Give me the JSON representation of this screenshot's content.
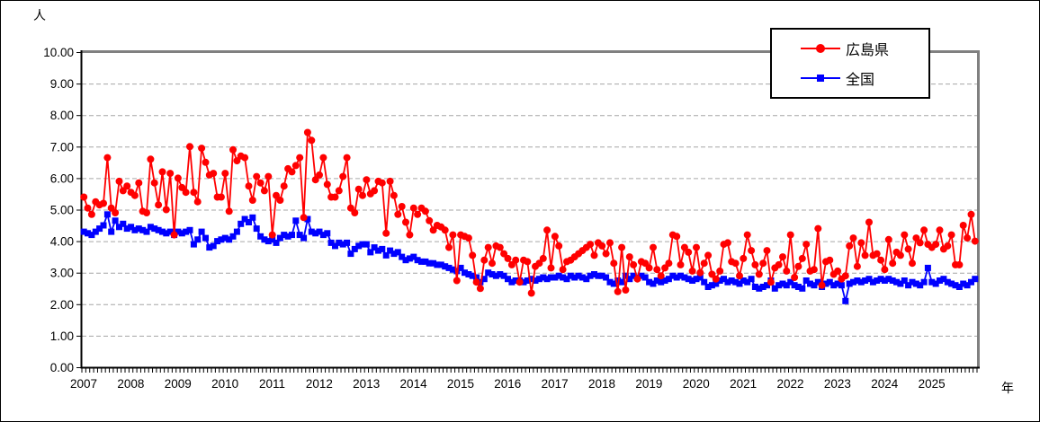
{
  "figure": {
    "unit_label": "人",
    "x_axis_label": "年"
  },
  "legend": {
    "items": [
      {
        "label": "広島県",
        "color": "#ff0000",
        "marker": "circle"
      },
      {
        "label": "全国",
        "color": "#0000ff",
        "marker": "square"
      }
    ]
  },
  "chart_data": {
    "type": "line",
    "title": "",
    "ylabel": "人",
    "xlabel": "年",
    "ylim": [
      0,
      10
    ],
    "y_tick_step": 1,
    "y_tick_labels": [
      "0.00",
      "1.00",
      "2.00",
      "3.00",
      "4.00",
      "5.00",
      "6.00",
      "7.00",
      "8.00",
      "9.00",
      "10.00"
    ],
    "grid": "horizontal-dashed",
    "legend_position": "top-right-inside",
    "x_frequency": "monthly",
    "years": [
      "2007",
      "2008",
      "2009",
      "2010",
      "2011",
      "2012",
      "2013",
      "2014",
      "2015",
      "2016",
      "2017",
      "2018",
      "2019",
      "2020",
      "2021",
      "2022",
      "2023",
      "2024",
      "2025"
    ],
    "points_per_year": 12,
    "series": [
      {
        "name": "広島県",
        "color": "#ff0000",
        "marker": "circle",
        "values": [
          5.4,
          5.05,
          4.85,
          5.25,
          5.15,
          5.2,
          6.65,
          5.05,
          4.9,
          5.9,
          5.6,
          5.75,
          5.55,
          5.45,
          5.85,
          4.95,
          4.9,
          6.6,
          5.85,
          5.15,
          6.2,
          5.0,
          6.15,
          4.2,
          6.0,
          5.7,
          5.55,
          7.0,
          5.55,
          5.25,
          6.95,
          6.5,
          6.1,
          6.15,
          5.4,
          5.4,
          6.15,
          4.95,
          6.9,
          6.55,
          6.7,
          6.65,
          5.75,
          5.3,
          6.05,
          5.85,
          5.6,
          6.05,
          4.2,
          5.45,
          5.3,
          5.75,
          6.3,
          6.2,
          6.4,
          6.65,
          4.75,
          7.45,
          7.2,
          5.95,
          6.1,
          6.65,
          5.8,
          5.4,
          5.4,
          5.6,
          6.05,
          6.65,
          5.05,
          4.9,
          5.65,
          5.45,
          5.95,
          5.5,
          5.6,
          5.9,
          5.85,
          4.25,
          5.9,
          5.45,
          4.85,
          5.1,
          4.6,
          4.2,
          5.05,
          4.85,
          5.05,
          4.95,
          4.65,
          4.35,
          4.5,
          4.45,
          4.35,
          3.8,
          4.2,
          2.75,
          4.2,
          4.15,
          4.1,
          3.55,
          2.7,
          2.5,
          3.4,
          3.8,
          3.3,
          3.85,
          3.8,
          3.6,
          3.45,
          3.25,
          3.4,
          2.7,
          3.4,
          3.35,
          2.35,
          3.2,
          3.3,
          3.45,
          4.35,
          3.15,
          4.15,
          3.85,
          3.1,
          3.35,
          3.4,
          3.5,
          3.6,
          3.7,
          3.8,
          3.9,
          3.55,
          3.95,
          3.85,
          3.6,
          3.95,
          3.3,
          2.4,
          3.8,
          2.45,
          3.5,
          3.25,
          2.8,
          3.35,
          3.3,
          3.15,
          3.8,
          3.1,
          2.9,
          3.15,
          3.3,
          4.2,
          4.15,
          3.25,
          3.8,
          3.65,
          3.05,
          3.8,
          3.0,
          3.3,
          3.55,
          2.95,
          2.8,
          3.05,
          3.9,
          3.95,
          3.35,
          3.3,
          2.9,
          3.45,
          4.2,
          3.7,
          3.25,
          2.95,
          3.3,
          3.7,
          2.7,
          3.15,
          3.25,
          3.5,
          3.05,
          4.2,
          2.85,
          3.2,
          3.45,
          3.9,
          3.05,
          3.1,
          4.4,
          2.6,
          3.35,
          3.4,
          2.95,
          3.05,
          2.8,
          2.9,
          3.85,
          4.1,
          3.2,
          3.95,
          3.55,
          4.6,
          3.55,
          3.6,
          3.4,
          3.1,
          4.05,
          3.3,
          3.65,
          3.55,
          4.2,
          3.75,
          3.3,
          4.1,
          3.95,
          4.35,
          3.9,
          3.8,
          3.9,
          4.35,
          3.75,
          3.85,
          4.2,
          3.25,
          3.25,
          4.5,
          4.1,
          4.85,
          4.0
        ]
      },
      {
        "name": "全国",
        "color": "#0000ff",
        "marker": "square",
        "values": [
          4.3,
          4.25,
          4.2,
          4.3,
          4.4,
          4.5,
          4.85,
          4.3,
          4.65,
          4.45,
          4.55,
          4.4,
          4.45,
          4.35,
          4.4,
          4.35,
          4.3,
          4.45,
          4.4,
          4.35,
          4.3,
          4.25,
          4.3,
          4.2,
          4.3,
          4.25,
          4.3,
          4.35,
          3.9,
          4.05,
          4.3,
          4.1,
          3.8,
          3.85,
          4.0,
          4.05,
          4.1,
          4.05,
          4.15,
          4.3,
          4.55,
          4.7,
          4.6,
          4.75,
          4.4,
          4.15,
          4.05,
          4.0,
          4.05,
          3.95,
          4.1,
          4.2,
          4.15,
          4.2,
          4.65,
          4.2,
          4.1,
          4.7,
          4.3,
          4.25,
          4.3,
          4.2,
          4.25,
          3.95,
          3.85,
          3.95,
          3.9,
          3.95,
          3.6,
          3.75,
          3.85,
          3.9,
          3.9,
          3.65,
          3.8,
          3.7,
          3.75,
          3.55,
          3.7,
          3.6,
          3.65,
          3.5,
          3.4,
          3.45,
          3.5,
          3.4,
          3.35,
          3.35,
          3.3,
          3.3,
          3.25,
          3.25,
          3.2,
          3.15,
          3.1,
          3.05,
          3.15,
          3.0,
          2.95,
          2.9,
          2.85,
          2.7,
          2.8,
          3.0,
          2.95,
          2.9,
          2.95,
          2.9,
          2.8,
          2.7,
          2.75,
          2.75,
          2.7,
          2.75,
          2.8,
          2.75,
          2.8,
          2.85,
          2.8,
          2.85,
          2.85,
          2.9,
          2.85,
          2.8,
          2.9,
          2.85,
          2.9,
          2.85,
          2.8,
          2.9,
          2.95,
          2.9,
          2.9,
          2.85,
          2.7,
          2.65,
          2.75,
          2.7,
          2.9,
          2.8,
          2.9,
          2.85,
          2.9,
          2.85,
          2.7,
          2.65,
          2.75,
          2.7,
          2.75,
          2.8,
          2.9,
          2.85,
          2.9,
          2.85,
          2.8,
          2.75,
          2.8,
          2.85,
          2.7,
          2.55,
          2.6,
          2.65,
          2.75,
          2.8,
          2.7,
          2.75,
          2.7,
          2.65,
          2.75,
          2.7,
          2.8,
          2.55,
          2.5,
          2.55,
          2.6,
          2.75,
          2.5,
          2.6,
          2.65,
          2.6,
          2.7,
          2.6,
          2.55,
          2.5,
          2.75,
          2.65,
          2.6,
          2.7,
          2.55,
          2.65,
          2.7,
          2.6,
          2.65,
          2.6,
          2.1,
          2.65,
          2.7,
          2.75,
          2.7,
          2.75,
          2.8,
          2.7,
          2.75,
          2.8,
          2.75,
          2.8,
          2.75,
          2.7,
          2.65,
          2.75,
          2.6,
          2.7,
          2.65,
          2.6,
          2.7,
          3.15,
          2.7,
          2.65,
          2.75,
          2.8,
          2.7,
          2.65,
          2.6,
          2.55,
          2.65,
          2.6,
          2.7,
          2.8
        ]
      }
    ],
    "style": {
      "grid_color": "#a6a6a6",
      "plot_border_color": "#808080",
      "axis_color": "#000000"
    }
  }
}
